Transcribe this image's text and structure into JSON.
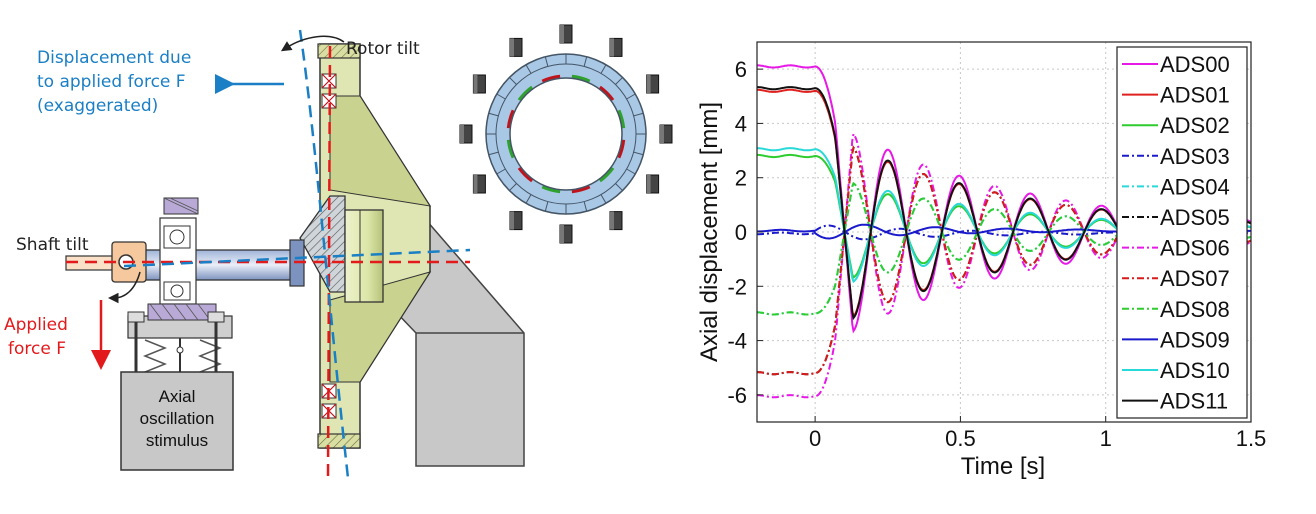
{
  "diagram": {
    "labels": {
      "displacement": [
        "Displacement due",
        "to applied force F",
        "(exaggerated)"
      ],
      "rotor_tilt": "Rotor tilt",
      "shaft_tilt": "Shaft tilt",
      "applied_force": [
        "Applied",
        "force F"
      ],
      "stimulus": [
        "Axial",
        "oscillation",
        "stimulus"
      ]
    },
    "colors": {
      "displacement": "#1a7fc4",
      "applied_force": "#e31a1c",
      "rotor_face": "#dfe6b4",
      "stator": "#a9c8e6",
      "magnet_red": "#c0141c",
      "magnet_green": "#2fa12f"
    }
  },
  "chart_data": {
    "type": "line",
    "xlabel": "Time [s]",
    "ylabel": "Axial displacement [mm]",
    "xlim": [
      -0.2,
      1.5
    ],
    "ylim": [
      -7,
      7
    ],
    "xticks": [
      0,
      0.5,
      1,
      1.5
    ],
    "yticks": [
      -6,
      -4,
      -2,
      0,
      2,
      4,
      6
    ],
    "xtick_labels": [
      "0",
      "0.5",
      "1",
      "1.5"
    ],
    "ytick_labels": [
      "-6",
      "-4",
      "-2",
      "0",
      "2",
      "4",
      "6"
    ],
    "grid": true,
    "legend_position": "right",
    "series": [
      {
        "name": "ADS00",
        "color": "#e619e6",
        "style": "solid",
        "initial": 6.1
      },
      {
        "name": "ADS01",
        "color": "#e0201e",
        "style": "solid",
        "initial": 5.2
      },
      {
        "name": "ADS02",
        "color": "#2ecc2e",
        "style": "solid",
        "initial": 2.8
      },
      {
        "name": "ADS03",
        "color": "#1a1acc",
        "style": "dashdot",
        "initial": -0.05
      },
      {
        "name": "ADS04",
        "color": "#27d9d9",
        "style": "dashdot",
        "initial": -3.0
      },
      {
        "name": "ADS05",
        "color": "#111111",
        "style": "dashdot",
        "initial": -5.2
      },
      {
        "name": "ADS06",
        "color": "#e619e6",
        "style": "dashdot",
        "initial": -6.05
      },
      {
        "name": "ADS07",
        "color": "#d81a1a",
        "style": "dashdot",
        "initial": -5.2
      },
      {
        "name": "ADS08",
        "color": "#2ecc2e",
        "style": "dashdot",
        "initial": -3.0
      },
      {
        "name": "ADS09",
        "color": "#1a1acc",
        "style": "solid",
        "initial": 0.05
      },
      {
        "name": "ADS10",
        "color": "#27d9d9",
        "style": "solid",
        "initial": 3.05
      },
      {
        "name": "ADS11",
        "color": "#111111",
        "style": "solid",
        "initial": 5.3
      }
    ]
  }
}
